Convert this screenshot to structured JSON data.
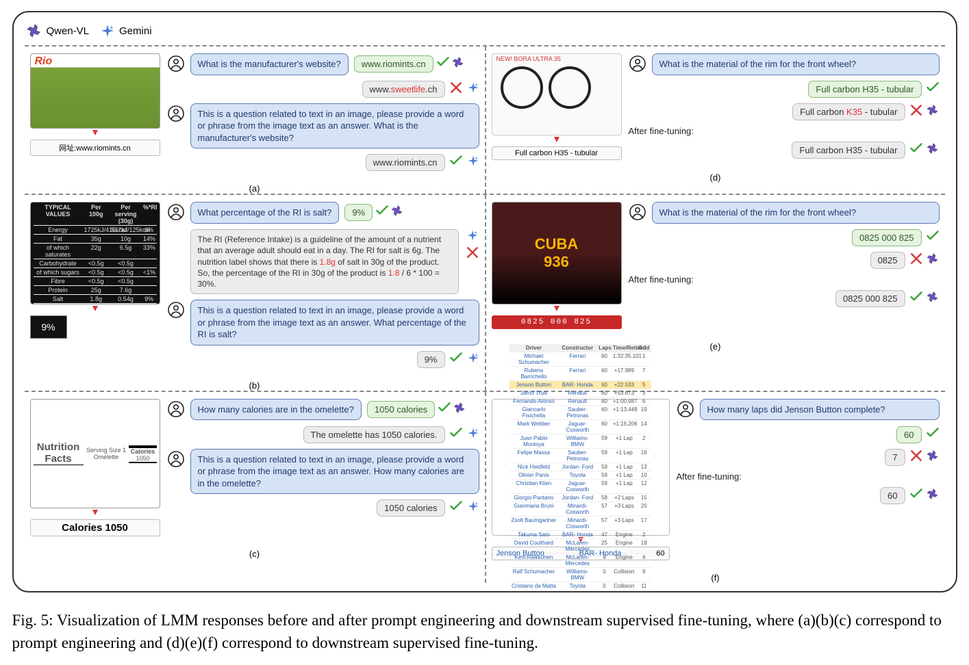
{
  "legend": {
    "qwen": "Qwen-VL",
    "gemini": "Gemini"
  },
  "prompt_template": "This is a question related to text in an image, please provide a word or phrase from the image text as an answer.",
  "panels": {
    "a": {
      "label": "(a)",
      "callout": "网址:www.riomints.cn",
      "q_short": "What is the manufacturer's website?",
      "q_long": "This is a question related to text in an image, please provide a word or phrase from the image text as an answer. What is the manufacturer's website?",
      "ans_correct": "www.riomints.cn",
      "ans_wrong_pre": "www.",
      "ans_wrong_red": "sweetlife",
      "ans_wrong_post": ".ch",
      "ans_after": "www.riomints.cn"
    },
    "b": {
      "label": "(b)",
      "callout": "9%",
      "q_short": "What percentage of the RI is salt?",
      "q_long": "This is a question related to text in an image, please provide a word or phrase from the image text as an answer. What percentage of the RI is salt?",
      "ans_correct": "9%",
      "ans_wrong_long_1": "The RI (Reference Intake) is a guideline of the amount of a nutrient that an average adult should eat in a day. The RI for salt is 6g. The nutrition label shows that there is ",
      "ans_wrong_long_red1": "1.8g",
      "ans_wrong_long_2": " of salt in 30g of the product. So, the percentage of the RI in 30g of the product is ",
      "ans_wrong_long_red2": "1.8",
      "ans_wrong_long_3": " / 6 * 100 = 30%.",
      "ans_after": "9%",
      "nutrition_rows": [
        [
          "TYPICAL VALUES",
          "Per 100g",
          "Per serving (30g)",
          "%*RI"
        ],
        [
          "Energy",
          "1725kJ/416kcal",
          "517kJ/125kcal",
          "6%"
        ],
        [
          "Fat",
          "35g",
          "10g",
          "14%"
        ],
        [
          "of which saturates",
          "22g",
          "6.5g",
          "33%"
        ],
        [
          "Carbohydrate",
          "<0.5g",
          "<0.5g",
          ""
        ],
        [
          "of which sugars",
          "<0.5g",
          "<0.5g",
          "<1%"
        ],
        [
          "Fibre",
          "<0.5g",
          "<0.5g",
          ""
        ],
        [
          "Protein",
          "25g",
          "7.6g",
          ""
        ],
        [
          "Salt",
          "1.8g",
          "0.54g",
          "9%"
        ]
      ]
    },
    "c": {
      "label": "(c)",
      "callout": "Calories 1050",
      "q_short": "How many calories are in the omelette?",
      "q_long": "This is a question related to text in an image, please provide a word or phrase from the image text as an answer. How many calories are in the omelette?",
      "ans_correct": "1050 calories",
      "ans_wrong": "The omelette has 1050 calories.",
      "ans_after": "1050 calories",
      "facts_header": "Nutrition Facts",
      "facts_sub": "Serving Size 1 Omelette",
      "facts_cal_label": "Calories",
      "facts_cal_val": "1050"
    },
    "d": {
      "label": "(d)",
      "callout": "Full carbon H35 - tubular",
      "q": "What is the material of the rim for the front wheel?",
      "ans_correct": "Full carbon H35 - tubular",
      "ans_wrong_pre": "Full carbon ",
      "ans_wrong_red": "K35",
      "ans_wrong_post": " - tubular",
      "ft_label": "After fine-tuning:",
      "ans_ft": "Full carbon H35 - tubular",
      "img_title": "NEW! BORA ULTRA 35"
    },
    "e": {
      "label": "(e)",
      "callout": "0825 000 825",
      "q": "What is the material of the rim for the front wheel?",
      "ans_correct": "0825 000 825",
      "ans_wrong": "0825",
      "ft_label": "After fine-tuning:",
      "ans_ft": "0825 000 825",
      "billboard": "936"
    },
    "f": {
      "label": "(f)",
      "callout_driver": "Jenson Button",
      "callout_team": "BAR- Honda",
      "callout_laps": "60",
      "q": "How many laps did Jenson Button complete?",
      "ans_correct": "60",
      "ans_wrong": "7",
      "ft_label": "After fine-tuning:",
      "ans_ft": "60",
      "race_header": [
        "Driver",
        "Constructor",
        "Laps",
        "Time/Retired",
        "Grid"
      ],
      "race_rows": [
        [
          "Michael Schumacher",
          "Ferrari",
          "60",
          "1:32:35.101",
          "1"
        ],
        [
          "Rubens Barrichello",
          "Ferrari",
          "60",
          "+17.989",
          "7"
        ],
        [
          "Jenson Button",
          "BAR- Honda",
          "60",
          "+22.533",
          "5"
        ],
        [
          "Jarno Trulli",
          "Renault",
          "60",
          "+53.673",
          "3"
        ],
        [
          "Fernando Alonso",
          "Renault",
          "60",
          "+1:00.987",
          "6"
        ],
        [
          "Giancarlo Fisichella",
          "Sauber- Petronas",
          "60",
          "+1:13.448",
          "19"
        ],
        [
          "Mark Webber",
          "Jaguar- Cosworth",
          "60",
          "+1:16.206",
          "14"
        ],
        [
          "Juan Pablo Montoya",
          "Williams- BMW",
          "59",
          "+1 Lap",
          "2"
        ],
        [
          "Felipe Massa",
          "Sauber- Petronas",
          "59",
          "+1 Lap",
          "16"
        ],
        [
          "Nick Heidfeld",
          "Jordan- Ford",
          "59",
          "+1 Lap",
          "13"
        ],
        [
          "Olivier Panis",
          "Toyota",
          "59",
          "+1 Lap",
          "10"
        ],
        [
          "Christian Klien",
          "Jaguar- Cosworth",
          "59",
          "+1 Lap",
          "12"
        ],
        [
          "Giorgio Pantano",
          "Jordan- Ford",
          "58",
          "+2 Laps",
          "15"
        ],
        [
          "Gianmaria Bruni",
          "Minardi- Cosworth",
          "57",
          "+3 Laps",
          "20"
        ],
        [
          "Zsolt Baumgartner",
          "Minardi- Cosworth",
          "57",
          "+3 Laps",
          "17"
        ],
        [
          "Takuma Sato",
          "BAR- Honda",
          "47",
          "Engine",
          "2"
        ],
        [
          "David Coulthard",
          "McLaren- Mercedes",
          "25",
          "Engine",
          "18"
        ],
        [
          "Kimi Räikkönen",
          "McLaren- Mercedes",
          "9",
          "Engine",
          "4"
        ],
        [
          "Ralf Schumacher",
          "Williams- BMW",
          "0",
          "Collision",
          "9"
        ],
        [
          "Cristiano da Matta",
          "Toyota",
          "0",
          "Collision",
          "11"
        ]
      ]
    }
  },
  "caption": {
    "lead": "Fig. 5:",
    "text_1": " Visualization of LMM responses before and after prompt engineering and downstream supervised fine-tuning, where (a)(b)(c) correspond to prompt engineering and (d)(e)(f) correspond to downstream supervised fine-tuning."
  },
  "colors": {
    "q_bg": "#d6e2f5",
    "q_border": "#5b7bb3",
    "ans_green_bg": "#e5f3df",
    "ans_green_border": "#87b97a",
    "ans_grey_bg": "#ececec",
    "ans_grey_border": "#bbbbbb",
    "check": "#3aa63a",
    "cross": "#d43a3a",
    "red_text": "#d33a3a",
    "qwen_icon": "#6a4fc7",
    "gemini_icon": "#4a7bd8"
  }
}
